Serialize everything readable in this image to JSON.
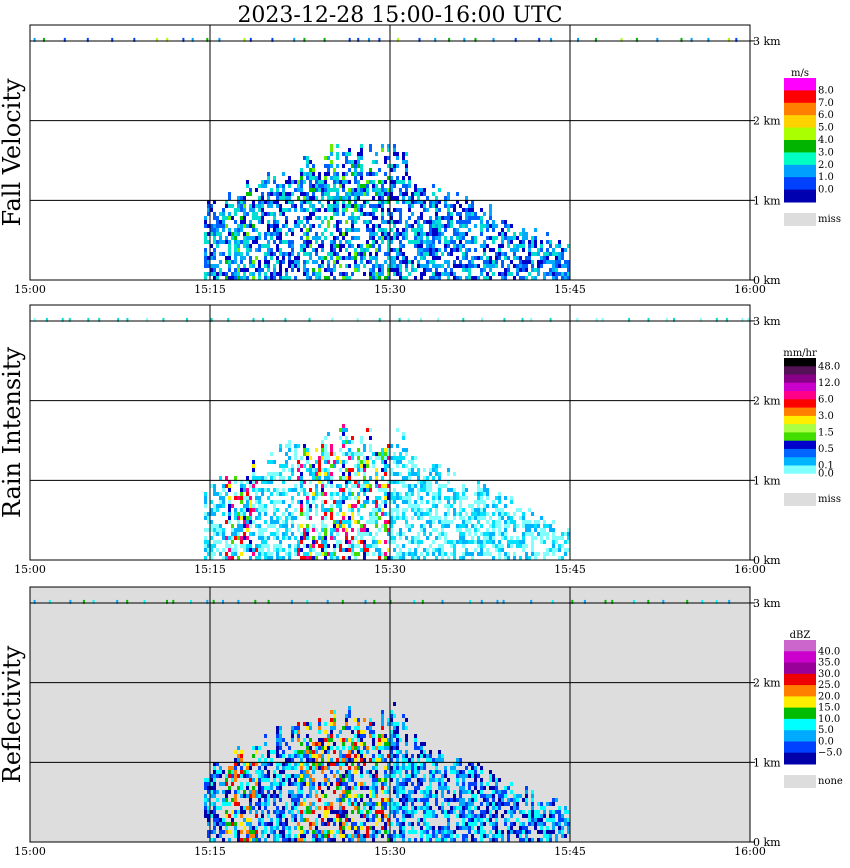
{
  "title": "2023-12-28   15:00-16:00 UTC",
  "chart_data": [
    {
      "type": "heatmap",
      "name": "fall-velocity",
      "ylabel": "Fall Velocity",
      "xticks": [
        "15:00",
        "15:15",
        "15:30",
        "15:45",
        "16:00"
      ],
      "yticks": [
        "0 km",
        "1 km",
        "2 km",
        "3 km"
      ],
      "xlim_minutes": [
        0,
        60
      ],
      "ylim_km": [
        0,
        3.2
      ],
      "background": "#ffffff",
      "legend": {
        "unit": "m/s",
        "labels": [
          "8.0",
          "7.0",
          "6.0",
          "5.0",
          "4.0",
          "3.0",
          "2.0",
          "1.0",
          "0.0"
        ],
        "colors": [
          "#ff00ff",
          "#ff0000",
          "#ff8000",
          "#ffd200",
          "#aaff00",
          "#00b400",
          "#00ffc0",
          "#00a0ff",
          "#0040ff",
          "#0000b0"
        ],
        "miss_label": "miss",
        "miss_color": "#dddddd"
      },
      "rain": {
        "start_min": 14.5,
        "end_min": 45,
        "max_top_km": 1.65,
        "palette": [
          "#0000c8",
          "#0060ff",
          "#00aaff",
          "#00e0d0",
          "#00c000",
          "#66ee00"
        ],
        "core_bias": 0.2,
        "density": 0.58
      }
    },
    {
      "type": "heatmap",
      "name": "rain-intensity",
      "ylabel": "Rain Intensity",
      "xticks": [
        "15:00",
        "15:15",
        "15:30",
        "15:45",
        "16:00"
      ],
      "yticks": [
        "0 km",
        "1 km",
        "2 km",
        "3 km"
      ],
      "xlim_minutes": [
        0,
        60
      ],
      "ylim_km": [
        0,
        3.2
      ],
      "background": "#ffffff",
      "legend": {
        "unit": "mm/hr",
        "labels": [
          "48.0",
          "",
          "12.0",
          "",
          "6.0",
          "",
          "3.0",
          "",
          "1.5",
          "",
          "0.5",
          "",
          "0.1",
          "0.0"
        ],
        "colors": [
          "#000000",
          "#551155",
          "#880088",
          "#cc00cc",
          "#ff0088",
          "#ff0000",
          "#ff8000",
          "#ffee00",
          "#aaff44",
          "#44dd00",
          "#0000cc",
          "#0066ff",
          "#00b4ff",
          "#80ffff",
          "#ffffff"
        ],
        "miss_label": "miss",
        "miss_color": "#dddddd"
      },
      "rain": {
        "start_min": 14.5,
        "end_min": 45,
        "max_top_km": 1.65,
        "palette": [
          "#80ffff",
          "#80ffff",
          "#00e0ff",
          "#00b4ff",
          "#0066ff",
          "#0000cc",
          "#44dd00",
          "#ffee00",
          "#ff0000",
          "#ff0088"
        ],
        "core_bias": 0.45,
        "density": 0.55
      }
    },
    {
      "type": "heatmap",
      "name": "reflectivity",
      "ylabel": "Reflectivity",
      "xticks": [
        "15:00",
        "15:15",
        "15:30",
        "15:45",
        "16:00"
      ],
      "yticks": [
        "0 km",
        "1 km",
        "2 km",
        "3 km"
      ],
      "xlim_minutes": [
        0,
        60
      ],
      "ylim_km": [
        0,
        3.2
      ],
      "background": "#dddddd",
      "legend": {
        "unit": "dBZ",
        "labels": [
          "40.0",
          "35.0",
          "30.0",
          "25.0",
          "20.0",
          "15.0",
          "10.0",
          "5.0",
          "0.0",
          "−5.0"
        ],
        "colors": [
          "#cc66cc",
          "#cc00cc",
          "#990099",
          "#ee0000",
          "#ff8000",
          "#ffee00",
          "#00bb00",
          "#00ffff",
          "#00aaff",
          "#0040ff",
          "#0000aa"
        ],
        "miss_label": "none",
        "miss_color": "#dddddd"
      },
      "rain": {
        "start_min": 14.5,
        "end_min": 45,
        "max_top_km": 1.65,
        "palette": [
          "#0000aa",
          "#0040ff",
          "#00aaff",
          "#00ffff",
          "#00bb00",
          "#ffee00",
          "#ff8000",
          "#ee0000"
        ],
        "core_bias": 0.45,
        "density": 0.62
      }
    }
  ]
}
